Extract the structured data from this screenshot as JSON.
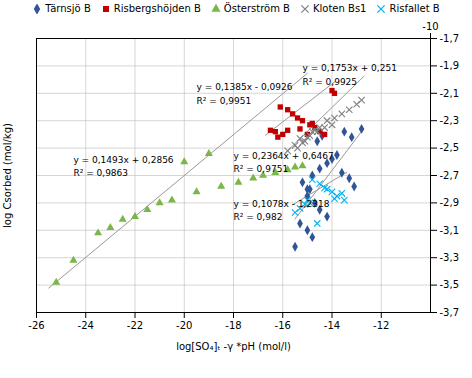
{
  "chart_data": {
    "type": "scatter",
    "xlabel": "log[SO₄]ₜ -γ *pH (mol/l)",
    "ylabel": "log Csorbed (mol/kg)",
    "xlim": [
      -26,
      -10
    ],
    "ylim": [
      -3.7,
      -1.7
    ],
    "xticks": [
      -26,
      -24,
      -22,
      -20,
      -18,
      -16,
      -14,
      -12
    ],
    "x2ticks": [
      -10
    ],
    "yticks": [
      {
        "value": -3.7,
        "label": "-3,7"
      },
      {
        "value": -3.5,
        "label": "-3,5"
      },
      {
        "value": -3.3,
        "label": "-3,3"
      },
      {
        "value": -3.1,
        "label": "-3,1"
      },
      {
        "value": -2.9,
        "label": "-2,9"
      },
      {
        "value": -2.7,
        "label": "-2,7"
      },
      {
        "value": -2.5,
        "label": "-2,5"
      },
      {
        "value": -2.3,
        "label": "-2,3"
      },
      {
        "value": -2.1,
        "label": "-2,1"
      },
      {
        "value": -1.9,
        "label": "-1,9"
      },
      {
        "value": -1.7,
        "label": "-1,7"
      }
    ],
    "grid": true,
    "series": [
      {
        "name": "Tärnsjö B",
        "color": "#2f5597",
        "marker": "diamond",
        "x": [
          -14.4,
          -14.9,
          -15.0,
          -14.7,
          -14.5,
          -14.2,
          -15.3,
          -15.0,
          -14.8,
          -15.5,
          -14.6,
          -13.5,
          -12.8,
          -13.2,
          -13.8,
          -14.0,
          -14.2,
          -14.5,
          -14.8,
          -15.2,
          -15.0,
          -13.6,
          -13.3,
          -13.1
        ],
        "y": [
          -2.41,
          -2.8,
          -2.85,
          -2.9,
          -2.95,
          -3.0,
          -3.05,
          -3.1,
          -3.15,
          -3.22,
          -2.45,
          -2.38,
          -2.36,
          -2.42,
          -2.55,
          -2.58,
          -2.61,
          -2.65,
          -2.7,
          -2.75,
          -2.8,
          -2.68,
          -2.72,
          -2.78
        ],
        "fit_x": [
          -15.5,
          -12.8
        ],
        "fit_y": [
          -3.0175,
          -2.37922
        ]
      },
      {
        "name": "Risbergshöjden B",
        "color": "#c00000",
        "marker": "square",
        "x": [
          -16.5,
          -16.3,
          -16.1,
          -15.8,
          -15.6,
          -15.4,
          -15.2,
          -14.9,
          -14.7,
          -14.5,
          -14.3,
          -14.0,
          -13.9,
          -15.0,
          -15.8,
          -16.0,
          -16.2,
          -14.8,
          -15.3
        ],
        "y": [
          -2.37,
          -2.38,
          -2.2,
          -2.22,
          -2.25,
          -2.28,
          -2.3,
          -2.33,
          -2.35,
          -2.38,
          -2.4,
          -2.08,
          -2.1,
          -2.4,
          -2.37,
          -2.4,
          -2.42,
          -2.32,
          -2.36
        ],
        "fit_x": [
          -16.7,
          -13.9
        ],
        "fit_y": [
          -2.40555,
          -2.01775
        ]
      },
      {
        "name": "Österström B",
        "color": "#7ab648",
        "marker": "triangle",
        "x": [
          -25.2,
          -24.5,
          -23.5,
          -22.5,
          -21.5,
          -20.5,
          -19.5,
          -18.5,
          -17.8,
          -17.2,
          -16.8,
          -16.3,
          -15.8,
          -15.5,
          -15.2,
          -19.0,
          -20.0,
          -21.0,
          -22.0,
          -23.0
        ],
        "y": [
          -3.48,
          -3.32,
          -3.12,
          -3.02,
          -2.95,
          -2.88,
          -2.82,
          -2.78,
          -2.75,
          -2.72,
          -2.7,
          -2.68,
          -2.66,
          -2.64,
          -2.63,
          -2.54,
          -2.6,
          -2.9,
          -3.0,
          -3.08
        ],
        "fit_x": [
          -25.5,
          -15.0
        ],
        "fit_y": [
          -3.52155,
          -1.9539
        ]
      },
      {
        "name": "Kloten Bs1",
        "color": "#808080",
        "marker": "x",
        "x": [
          -15.8,
          -15.5,
          -15.3,
          -15.0,
          -14.8,
          -14.5,
          -14.2,
          -13.9,
          -13.6,
          -13.3,
          -13.0,
          -12.8,
          -14.0,
          -14.3,
          -14.6,
          -15.1,
          -15.4,
          -14.7,
          -15.2,
          -14.9
        ],
        "y": [
          -2.52,
          -2.48,
          -2.43,
          -2.42,
          -2.38,
          -2.35,
          -2.3,
          -2.28,
          -2.25,
          -2.22,
          -2.18,
          -2.15,
          -2.33,
          -2.35,
          -2.38,
          -2.45,
          -2.5,
          -2.37,
          -2.46,
          -2.41
        ],
        "fit_x": [
          -15.9,
          -12.7
        ],
        "fit_y": [
          -2.53627,
          -1.97531
        ]
      },
      {
        "name": "Risfallet B",
        "color": "#00b0f0",
        "marker": "x",
        "x": [
          -14.8,
          -14.5,
          -14.3,
          -14.0,
          -13.8,
          -13.5,
          -15.1,
          -15.3,
          -15.5,
          -14.6,
          -14.2,
          -14.9,
          -15.0,
          -13.6,
          -13.9
        ],
        "y": [
          -2.73,
          -2.76,
          -2.79,
          -2.82,
          -2.85,
          -2.88,
          -2.91,
          -2.94,
          -2.97,
          -3.05,
          -2.8,
          -2.9,
          -2.88,
          -2.83,
          -2.87
        ],
        "fit_x": [
          -15.6,
          -13.4
        ],
        "fit_y": [
          -2.91348,
          -2.67632
        ]
      }
    ],
    "annotations": [
      {
        "text": "y = 0,1385x - 0,0926",
        "x": -19.5,
        "y": -2.03
      },
      {
        "text": "R² = 0,9951",
        "x": -19.5,
        "y": -2.13
      },
      {
        "text": "y = 0,1753x + 0,251",
        "x": -15.2,
        "y": -1.89
      },
      {
        "text": "R² = 0,9925",
        "x": -15.2,
        "y": -1.99
      },
      {
        "text": "y = 0,1493x + 0,2856",
        "x": -24.5,
        "y": -2.56
      },
      {
        "text": "R² = 0,9863",
        "x": -24.5,
        "y": -2.66
      },
      {
        "text": "y = 0,2364x + 0,6467",
        "x": -18.0,
        "y": -2.53
      },
      {
        "text": "R² = 0,9751",
        "x": -18.0,
        "y": -2.63
      },
      {
        "text": "y = 0,1078x - 1,2318",
        "x": -18.0,
        "y": -2.88
      },
      {
        "text": "R² = 0,982",
        "x": -18.0,
        "y": -2.98
      }
    ]
  }
}
